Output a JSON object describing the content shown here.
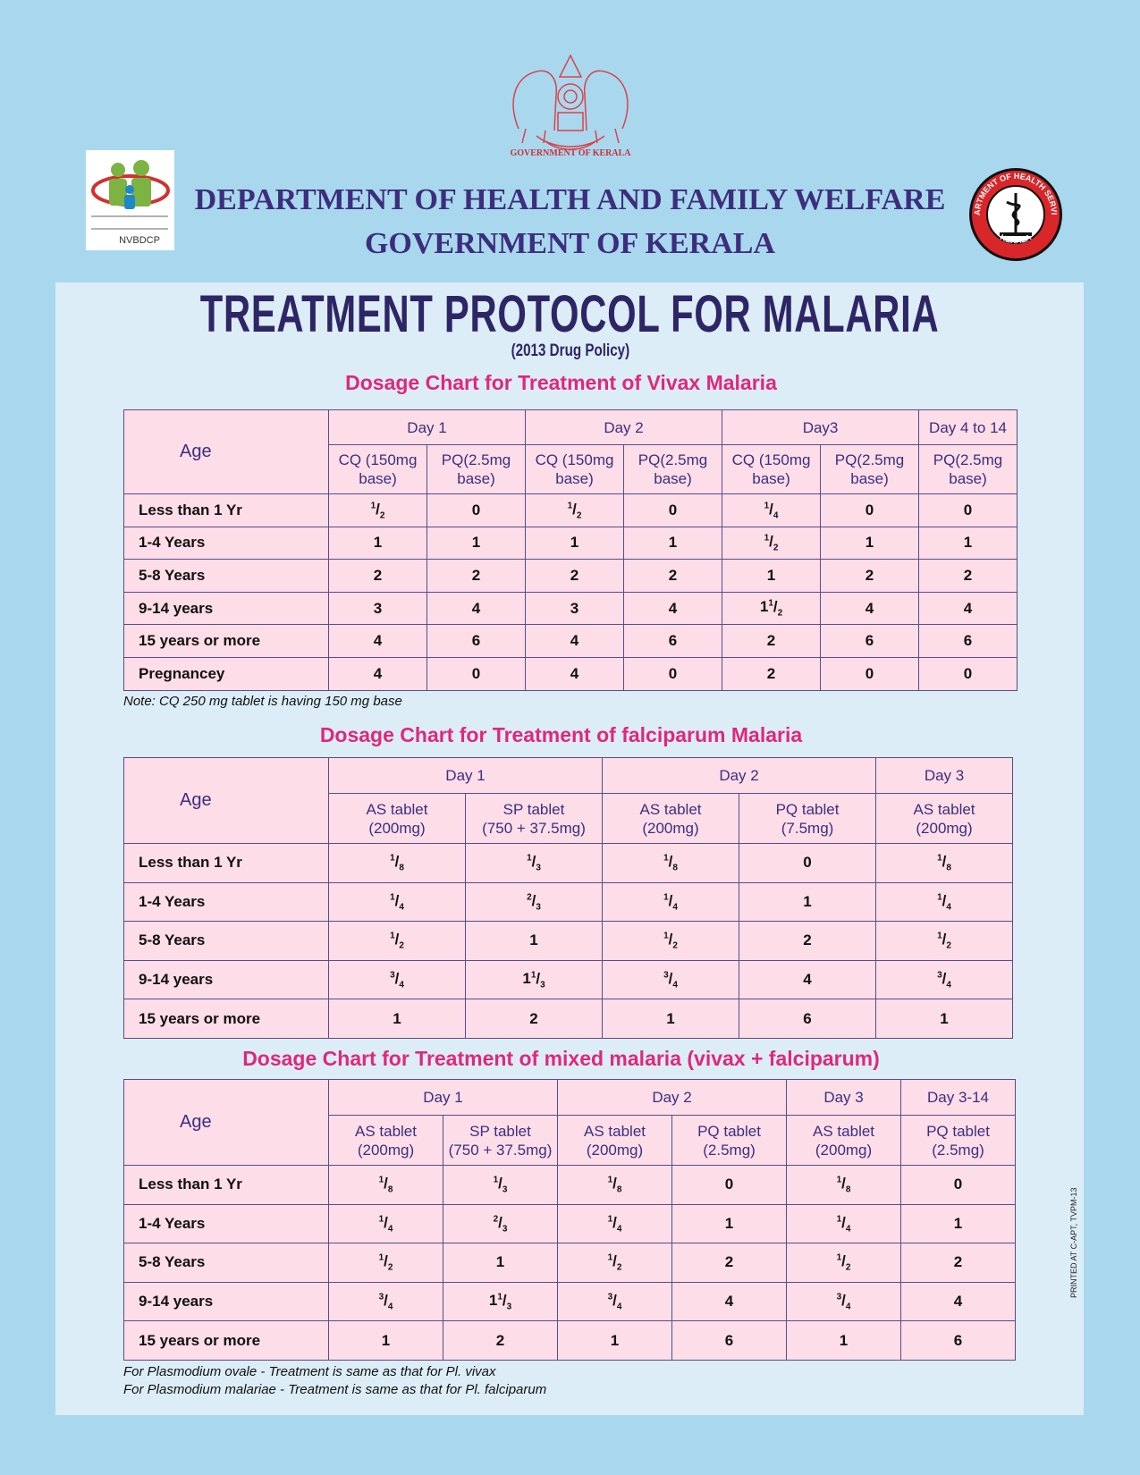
{
  "emblem_caption": "GOVERNMENT OF KERALA",
  "left_logo": {
    "text": "NVBDCP"
  },
  "right_logo": {
    "top": "DEPARTMENT OF HEALTH SERVICES",
    "bottom": "KERALA"
  },
  "header": {
    "line1": "DEPARTMENT OF HEALTH AND FAMILY WELFARE",
    "line2": "GOVERNMENT OF KERALA"
  },
  "title": "TREATMENT PROTOCOL FOR MALARIA",
  "subtitle": "(2013 Drug Policy)",
  "tables": [
    {
      "title": "Dosage Chart for Treatment of Vivax Malaria",
      "age_label": "Age",
      "days": [
        {
          "label": "Day 1",
          "columns": [
            "CQ (150mg\nbase)",
            "PQ(2.5mg\nbase)"
          ]
        },
        {
          "label": "Day 2",
          "columns": [
            "CQ (150mg\nbase)",
            "PQ(2.5mg\nbase)"
          ]
        },
        {
          "label": "Day3",
          "columns": [
            "CQ (150mg\nbase)",
            "PQ(2.5mg\nbase)"
          ]
        },
        {
          "label": "Day 4 to 14",
          "columns": [
            "PQ(2.5mg\nbase)"
          ]
        }
      ],
      "rows": [
        {
          "age": "Less than 1 Yr",
          "doses": [
            "1/2",
            "0",
            "1/2",
            "0",
            "1/4",
            "0",
            "0"
          ]
        },
        {
          "age": "1-4 Years",
          "doses": [
            "1",
            "1",
            "1",
            "1",
            "1/2",
            "1",
            "1"
          ]
        },
        {
          "age": "5-8 Years",
          "doses": [
            "2",
            "2",
            "2",
            "2",
            "1",
            "2",
            "2"
          ]
        },
        {
          "age": "9-14 years",
          "doses": [
            "3",
            "4",
            "3",
            "4",
            "1 1/2",
            "4",
            "4"
          ]
        },
        {
          "age": "15 years or more",
          "doses": [
            "4",
            "6",
            "4",
            "6",
            "2",
            "6",
            "6"
          ]
        },
        {
          "age": "Pregnancey",
          "doses": [
            "4",
            "0",
            "4",
            "0",
            "2",
            "0",
            "0"
          ]
        }
      ],
      "note": "Note: CQ 250 mg tablet is having 150 mg base"
    },
    {
      "title": "Dosage Chart for Treatment of falciparum Malaria",
      "age_label": "Age",
      "days": [
        {
          "label": "Day 1",
          "columns": [
            "AS tablet\n(200mg)",
            "SP tablet\n(750 + 37.5mg)"
          ]
        },
        {
          "label": "Day 2",
          "columns": [
            "AS tablet\n(200mg)",
            "PQ tablet\n(7.5mg)"
          ]
        },
        {
          "label": "Day 3",
          "columns": [
            "AS tablet\n(200mg)"
          ]
        }
      ],
      "rows": [
        {
          "age": "Less than 1 Yr",
          "doses": [
            "1/8",
            "1/3",
            "1/8",
            "0",
            "1/8"
          ]
        },
        {
          "age": "1-4 Years",
          "doses": [
            "1/4",
            "2/3",
            "1/4",
            "1",
            "1/4"
          ]
        },
        {
          "age": "5-8 Years",
          "doses": [
            "1/2",
            "1",
            "1/2",
            "2",
            "1/2"
          ]
        },
        {
          "age": "9-14 years",
          "doses": [
            "3/4",
            "1 1/3",
            "3/4",
            "4",
            "3/4"
          ]
        },
        {
          "age": "15 years or more",
          "doses": [
            "1",
            "2",
            "1",
            "6",
            "1"
          ]
        }
      ]
    },
    {
      "title": "Dosage Chart for Treatment of mixed malaria (vivax + falciparum)",
      "age_label": "Age",
      "days": [
        {
          "label": "Day 1",
          "columns": [
            "AS tablet\n(200mg)",
            "SP tablet\n(750 + 37.5mg)"
          ]
        },
        {
          "label": "Day 2",
          "columns": [
            "AS tablet\n(200mg)",
            "PQ tablet\n(2.5mg)"
          ]
        },
        {
          "label": "Day 3",
          "columns": [
            "AS tablet\n(200mg)"
          ]
        },
        {
          "label": "Day 3-14",
          "columns": [
            "PQ tablet\n(2.5mg)"
          ]
        }
      ],
      "rows": [
        {
          "age": "Less than 1 Yr",
          "doses": [
            "1/8",
            "1/3",
            "1/8",
            "0",
            "1/8",
            "0"
          ]
        },
        {
          "age": "1-4 Years",
          "doses": [
            "1/4",
            "2/3",
            "1/4",
            "1",
            "1/4",
            "1"
          ]
        },
        {
          "age": "5-8 Years",
          "doses": [
            "1/2",
            "1",
            "1/2",
            "2",
            "1/2",
            "2"
          ]
        },
        {
          "age": "9-14 years",
          "doses": [
            "3/4",
            "1 1/3",
            "3/4",
            "4",
            "3/4",
            "4"
          ]
        },
        {
          "age": "15 years or more",
          "doses": [
            "1",
            "2",
            "1",
            "6",
            "1",
            "6"
          ]
        }
      ]
    }
  ],
  "footnotes": [
    "For Plasmodium ovale - Treatment is same as that for Pl. vivax",
    "For Plasmodium malariae - Treatment is same as that for Pl. falciparum"
  ],
  "print_code": "PRINTED AT C-APT, TVPM-13"
}
